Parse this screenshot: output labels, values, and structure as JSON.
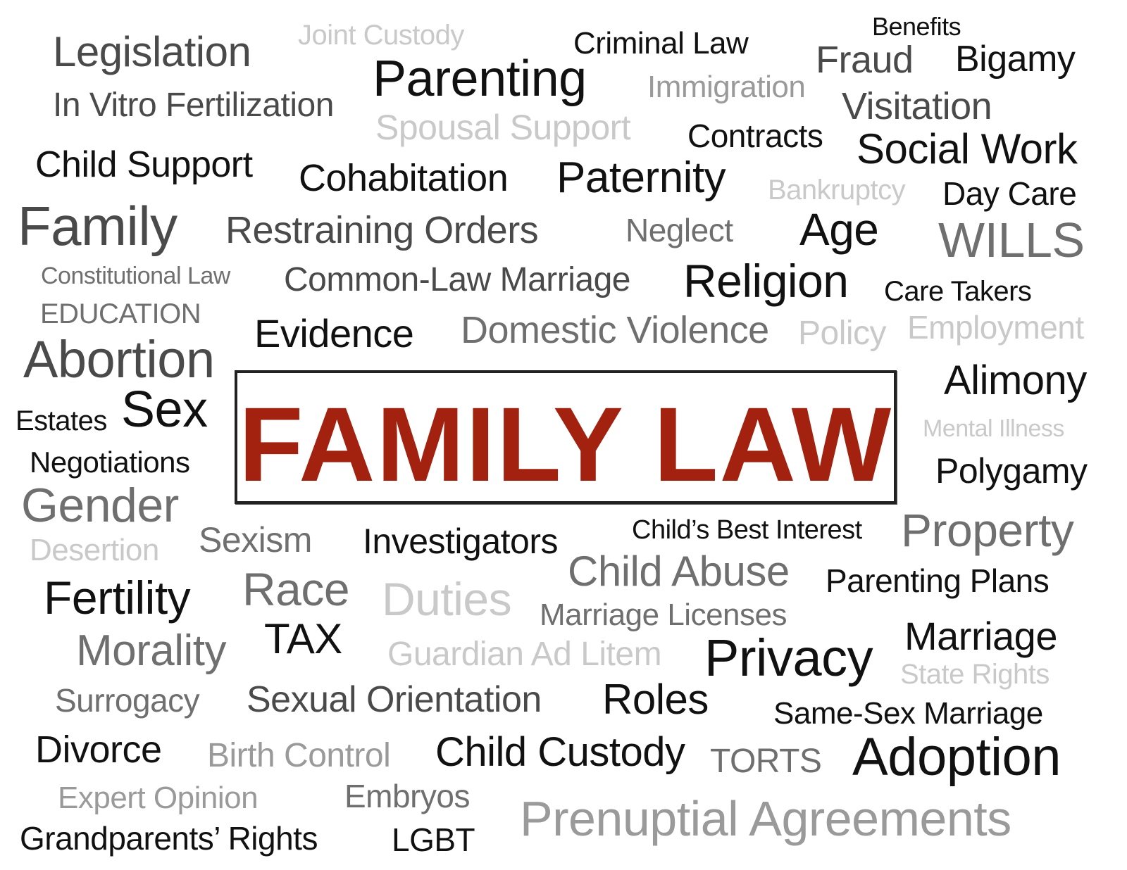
{
  "colors": {
    "black": "#111111",
    "dark_gray": "#4a4a4a",
    "mid_gray": "#6f6f6f",
    "light_gray": "#9a9a9a",
    "pale_gray": "#c9c9c9",
    "hero_red": "#a3220f"
  },
  "hero": {
    "title": "FAMILY LAW"
  },
  "words": [
    {
      "id": "legislation",
      "text": "Legislation"
    },
    {
      "id": "joint-custody",
      "text": "Joint Custody"
    },
    {
      "id": "criminal-law",
      "text": "Criminal Law"
    },
    {
      "id": "benefits",
      "text": "Benefits"
    },
    {
      "id": "parenting",
      "text": "Parenting"
    },
    {
      "id": "fraud",
      "text": "Fraud"
    },
    {
      "id": "bigamy",
      "text": "Bigamy"
    },
    {
      "id": "immigration",
      "text": "Immigration"
    },
    {
      "id": "in-vitro-fertilization",
      "text": "In Vitro Fertilization"
    },
    {
      "id": "visitation",
      "text": "Visitation"
    },
    {
      "id": "spousal-support",
      "text": "Spousal Support"
    },
    {
      "id": "contracts",
      "text": "Contracts"
    },
    {
      "id": "social-work",
      "text": "Social Work"
    },
    {
      "id": "child-support",
      "text": "Child Support"
    },
    {
      "id": "cohabitation",
      "text": "Cohabitation"
    },
    {
      "id": "paternity",
      "text": "Paternity"
    },
    {
      "id": "bankruptcy",
      "text": "Bankruptcy"
    },
    {
      "id": "day-care",
      "text": "Day Care"
    },
    {
      "id": "family",
      "text": "Family"
    },
    {
      "id": "restraining-orders",
      "text": "Restraining Orders"
    },
    {
      "id": "neglect",
      "text": "Neglect"
    },
    {
      "id": "age",
      "text": "Age"
    },
    {
      "id": "wills",
      "text": "WILLS"
    },
    {
      "id": "constitutional-law",
      "text": "Constitutional Law"
    },
    {
      "id": "common-law-marriage",
      "text": "Common-Law Marriage"
    },
    {
      "id": "religion",
      "text": "Religion"
    },
    {
      "id": "care-takers",
      "text": "Care Takers"
    },
    {
      "id": "education",
      "text": "EDUCATION"
    },
    {
      "id": "evidence",
      "text": "Evidence"
    },
    {
      "id": "domestic-violence",
      "text": "Domestic Violence"
    },
    {
      "id": "policy",
      "text": "Policy"
    },
    {
      "id": "employment",
      "text": "Employment"
    },
    {
      "id": "abortion",
      "text": "Abortion"
    },
    {
      "id": "alimony",
      "text": "Alimony"
    },
    {
      "id": "estates",
      "text": "Estates"
    },
    {
      "id": "sex",
      "text": "Sex"
    },
    {
      "id": "mental-illness",
      "text": "Mental Illness"
    },
    {
      "id": "negotiations",
      "text": "Negotiations"
    },
    {
      "id": "polygamy",
      "text": "Polygamy"
    },
    {
      "id": "gender",
      "text": "Gender"
    },
    {
      "id": "childs-best-interest",
      "text": "Child’s Best Interest"
    },
    {
      "id": "property",
      "text": "Property"
    },
    {
      "id": "desertion",
      "text": "Desertion"
    },
    {
      "id": "sexism",
      "text": "Sexism"
    },
    {
      "id": "investigators",
      "text": "Investigators"
    },
    {
      "id": "child-abuse",
      "text": "Child Abuse"
    },
    {
      "id": "parenting-plans",
      "text": "Parenting Plans"
    },
    {
      "id": "fertility",
      "text": "Fertility"
    },
    {
      "id": "race",
      "text": "Race"
    },
    {
      "id": "duties",
      "text": "Duties"
    },
    {
      "id": "marriage-licenses",
      "text": "Marriage Licenses"
    },
    {
      "id": "tax",
      "text": "TAX"
    },
    {
      "id": "marriage",
      "text": "Marriage"
    },
    {
      "id": "morality",
      "text": "Morality"
    },
    {
      "id": "guardian-ad-litem",
      "text": "Guardian Ad Litem"
    },
    {
      "id": "privacy",
      "text": "Privacy"
    },
    {
      "id": "state-rights",
      "text": "State Rights"
    },
    {
      "id": "surrogacy",
      "text": "Surrogacy"
    },
    {
      "id": "sexual-orientation",
      "text": "Sexual Orientation"
    },
    {
      "id": "roles",
      "text": "Roles"
    },
    {
      "id": "same-sex-marriage",
      "text": "Same-Sex Marriage"
    },
    {
      "id": "divorce",
      "text": "Divorce"
    },
    {
      "id": "birth-control",
      "text": "Birth Control"
    },
    {
      "id": "child-custody",
      "text": "Child Custody"
    },
    {
      "id": "torts",
      "text": "TORTS"
    },
    {
      "id": "adoption",
      "text": "Adoption"
    },
    {
      "id": "expert-opinion",
      "text": "Expert Opinion"
    },
    {
      "id": "embryos",
      "text": "Embryos"
    },
    {
      "id": "prenuptial-agreements",
      "text": "Prenuptial Agreements"
    },
    {
      "id": "grandparents-rights",
      "text": "Grandparents’ Rights"
    },
    {
      "id": "lgbt",
      "text": "LGBT"
    }
  ]
}
